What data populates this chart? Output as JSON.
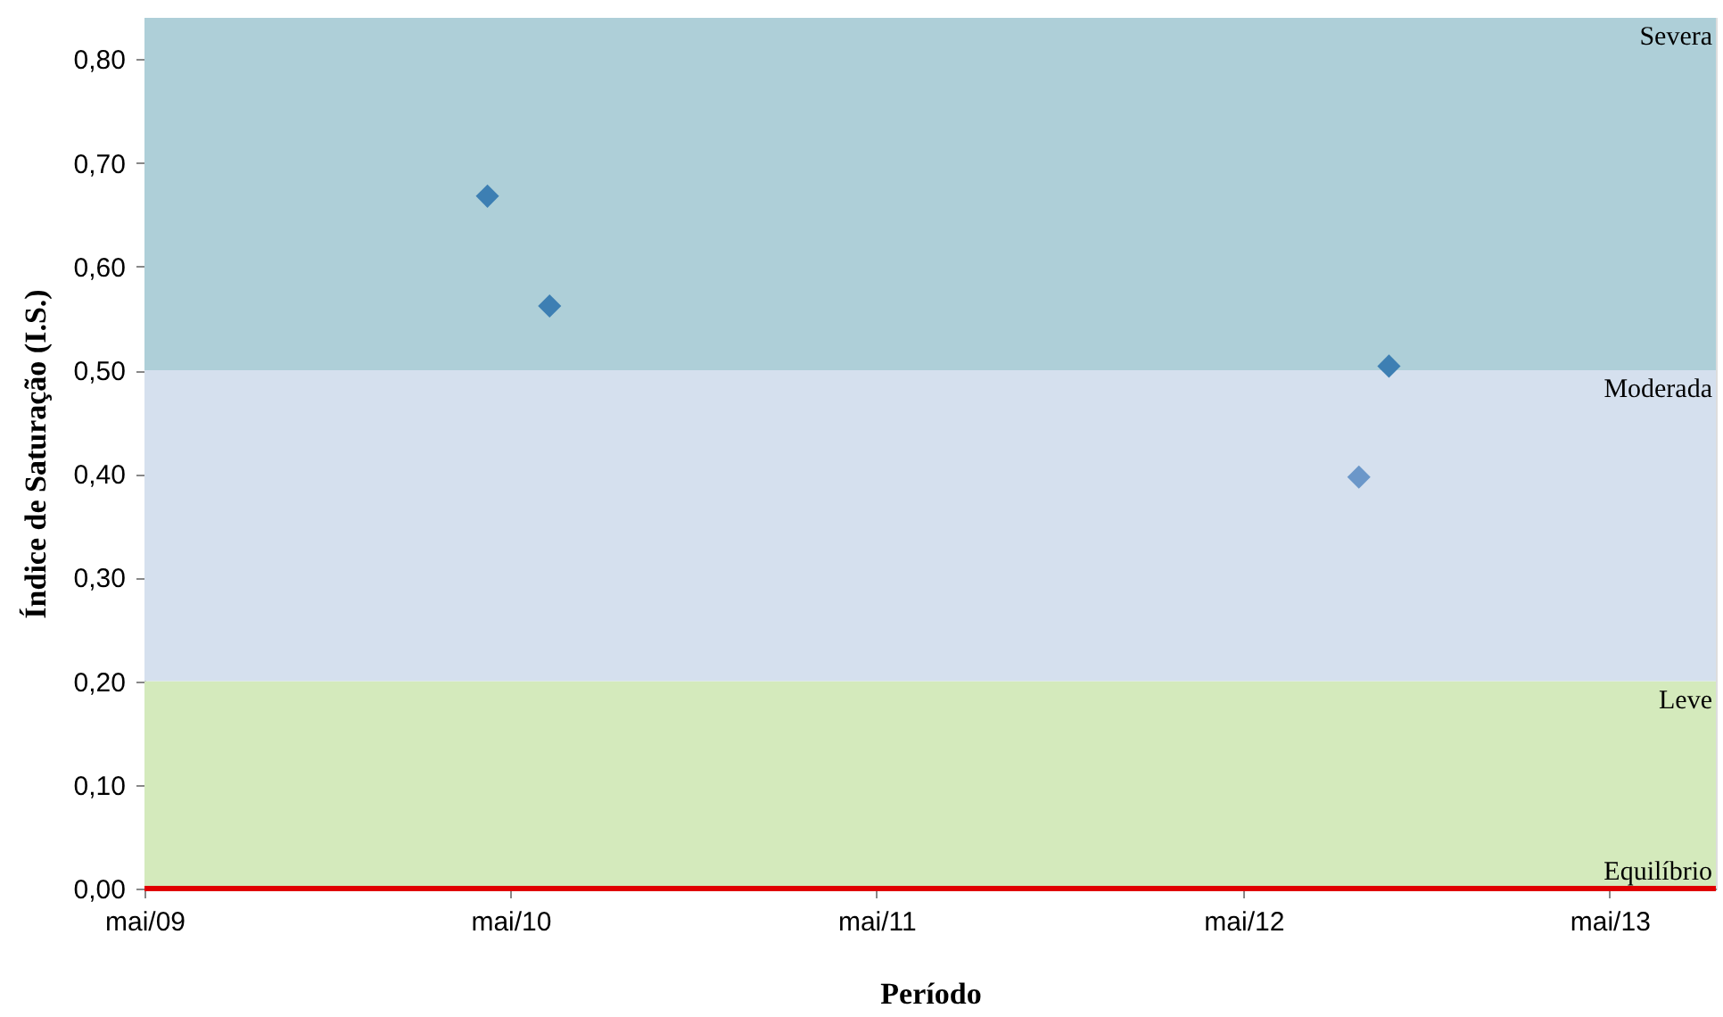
{
  "chart_data": {
    "type": "scatter",
    "xlabel": "Período",
    "ylabel": "Índice de Saturação (I.S.)",
    "x": [
      "2010-04-08",
      "2010-06-09",
      "2012-08-24",
      "2012-09-23"
    ],
    "series": [
      {
        "values": [
          0.668,
          0.562,
          0.397,
          0.504
        ],
        "colors": [
          "#3d7fb3",
          "#3d7fb3",
          "#6b97c9",
          "#3d7fb3"
        ]
      }
    ],
    "marker": "diamond",
    "grid": false,
    "xlim": [
      "2009-05-01",
      "2013-08-15"
    ],
    "xticks": [
      {
        "value": "2009-05-01",
        "label": "mai/09"
      },
      {
        "value": "2010-05-01",
        "label": "mai/10"
      },
      {
        "value": "2011-05-01",
        "label": "mai/11"
      },
      {
        "value": "2012-05-01",
        "label": "mai/12"
      },
      {
        "value": "2013-05-01",
        "label": "mai/13"
      }
    ],
    "ylim": [
      0,
      0.84
    ],
    "yticks": [
      {
        "value": 0,
        "label": "0,00"
      },
      {
        "value": 0.1,
        "label": "0,10"
      },
      {
        "value": 0.2,
        "label": "0,20"
      },
      {
        "value": 0.3,
        "label": "0,30"
      },
      {
        "value": 0.4,
        "label": "0,40"
      },
      {
        "value": 0.5,
        "label": "0,50"
      },
      {
        "value": 0.6,
        "label": "0,60"
      },
      {
        "value": 0.7,
        "label": "0,70"
      },
      {
        "value": 0.8,
        "label": "0,80"
      }
    ],
    "bands": [
      {
        "axis": "y",
        "from": 0,
        "to": 0.2,
        "label": "Leve",
        "color": "#d4eabc"
      },
      {
        "axis": "y",
        "from": 0.2,
        "to": 0.5,
        "label": "Moderada",
        "color": "#d5e0ee"
      },
      {
        "axis": "y",
        "from": 0.5,
        "to": 0.84,
        "label": "Severa",
        "color": "#aecfd8"
      }
    ],
    "ref_lines": [
      {
        "axis": "y",
        "value": 0,
        "label": "Equilíbrio",
        "color": "#e00000",
        "line_style": "solid"
      }
    ]
  }
}
